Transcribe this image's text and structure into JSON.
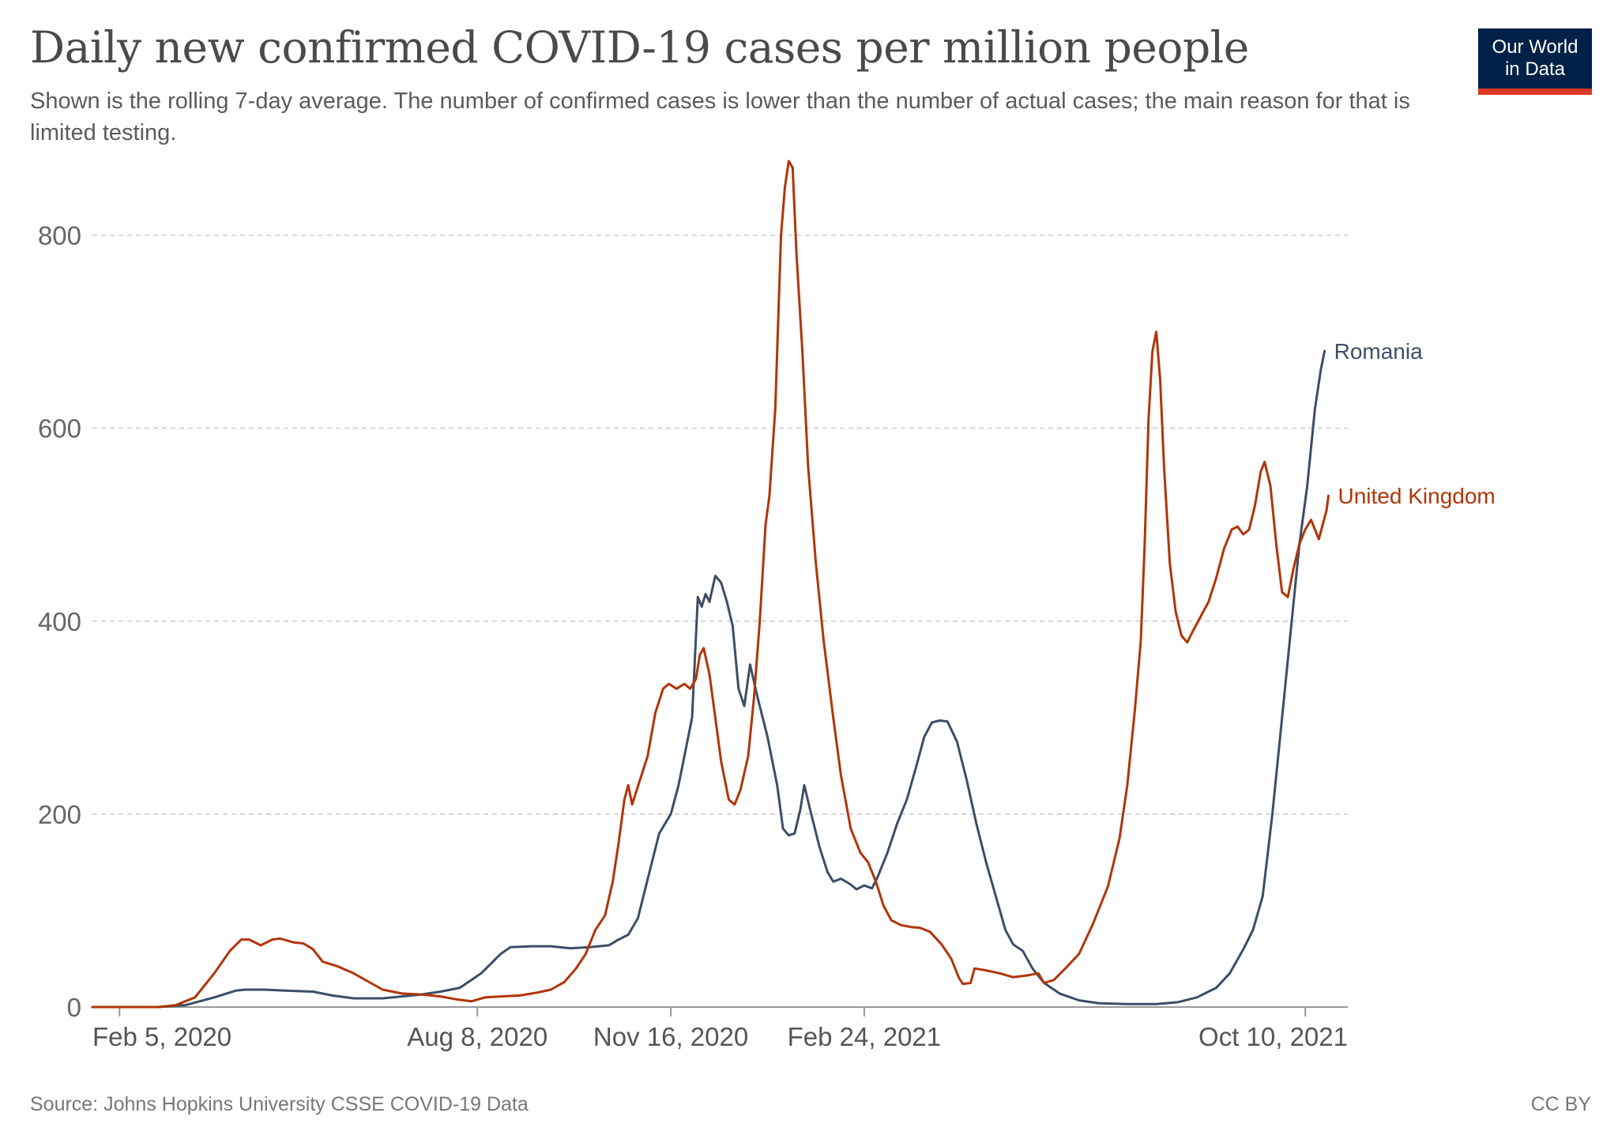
{
  "title": "Daily new confirmed COVID-19 cases per million people",
  "subtitle": "Shown is the rolling 7-day average. The number of confirmed cases is lower than the number of actual cases; the main reason for that is limited testing.",
  "logo": {
    "line1": "Our World",
    "line2": "in Data",
    "bg_color": "#002147",
    "accent_color": "#dc3a26"
  },
  "footer": {
    "source": "Source: Johns Hopkins University CSSE COVID-19 Data",
    "license": "CC BY"
  },
  "chart_data": {
    "type": "line",
    "title": "Daily new confirmed COVID-19 cases per million people",
    "xlabel": "",
    "ylabel": "",
    "x_range": [
      "2020-01-22",
      "2021-11-01"
    ],
    "ylim": [
      0,
      880
    ],
    "y_ticks": [
      0,
      200,
      400,
      600,
      800
    ],
    "x_ticks": [
      {
        "date": "2020-02-05",
        "label": "Feb 5, 2020"
      },
      {
        "date": "2020-08-08",
        "label": "Aug 8, 2020"
      },
      {
        "date": "2020-11-16",
        "label": "Nov 16, 2020"
      },
      {
        "date": "2021-02-24",
        "label": "Feb 24, 2021"
      },
      {
        "date": "2021-10-10",
        "label": "Oct 10, 2021"
      }
    ],
    "grid": "horizontal dashed",
    "legend": "inline labels at line ends",
    "series": [
      {
        "name": "Romania",
        "color": "#3c4e66",
        "points": [
          [
            "2020-01-22",
            0
          ],
          [
            "2020-02-25",
            0
          ],
          [
            "2020-03-10",
            2
          ],
          [
            "2020-03-25",
            10
          ],
          [
            "2020-04-05",
            17
          ],
          [
            "2020-04-10",
            18
          ],
          [
            "2020-04-20",
            18
          ],
          [
            "2020-05-01",
            17
          ],
          [
            "2020-05-15",
            16
          ],
          [
            "2020-05-25",
            12
          ],
          [
            "2020-06-05",
            9
          ],
          [
            "2020-06-20",
            9
          ],
          [
            "2020-06-30",
            11
          ],
          [
            "2020-07-10",
            13
          ],
          [
            "2020-07-20",
            16
          ],
          [
            "2020-07-30",
            20
          ],
          [
            "2020-08-10",
            35
          ],
          [
            "2020-08-20",
            55
          ],
          [
            "2020-08-25",
            62
          ],
          [
            "2020-09-05",
            63
          ],
          [
            "2020-09-15",
            63
          ],
          [
            "2020-09-25",
            61
          ],
          [
            "2020-10-05",
            62
          ],
          [
            "2020-10-15",
            64
          ],
          [
            "2020-10-20",
            70
          ],
          [
            "2020-10-25",
            75
          ],
          [
            "2020-10-30",
            92
          ],
          [
            "2020-11-05",
            140
          ],
          [
            "2020-11-10",
            180
          ],
          [
            "2020-11-16",
            200
          ],
          [
            "2020-11-20",
            230
          ],
          [
            "2020-11-24",
            270
          ],
          [
            "2020-11-27",
            300
          ],
          [
            "2020-11-30",
            425
          ],
          [
            "2020-12-02",
            415
          ],
          [
            "2020-12-04",
            428
          ],
          [
            "2020-12-06",
            420
          ],
          [
            "2020-12-09",
            447
          ],
          [
            "2020-12-12",
            440
          ],
          [
            "2020-12-15",
            420
          ],
          [
            "2020-12-18",
            395
          ],
          [
            "2020-12-21",
            330
          ],
          [
            "2020-12-24",
            312
          ],
          [
            "2020-12-27",
            355
          ],
          [
            "2020-12-31",
            320
          ],
          [
            "2021-01-05",
            280
          ],
          [
            "2021-01-10",
            230
          ],
          [
            "2021-01-13",
            185
          ],
          [
            "2021-01-16",
            178
          ],
          [
            "2021-01-19",
            180
          ],
          [
            "2021-01-22",
            205
          ],
          [
            "2021-01-24",
            230
          ],
          [
            "2021-01-27",
            205
          ],
          [
            "2021-02-01",
            165
          ],
          [
            "2021-02-05",
            140
          ],
          [
            "2021-02-08",
            130
          ],
          [
            "2021-02-12",
            133
          ],
          [
            "2021-02-17",
            127
          ],
          [
            "2021-02-20",
            122
          ],
          [
            "2021-02-24",
            126
          ],
          [
            "2021-02-28",
            123
          ],
          [
            "2021-03-03",
            135
          ],
          [
            "2021-03-08",
            160
          ],
          [
            "2021-03-13",
            190
          ],
          [
            "2021-03-18",
            215
          ],
          [
            "2021-03-23",
            250
          ],
          [
            "2021-03-27",
            280
          ],
          [
            "2021-03-31",
            295
          ],
          [
            "2021-04-04",
            297
          ],
          [
            "2021-04-08",
            296
          ],
          [
            "2021-04-13",
            275
          ],
          [
            "2021-04-18",
            235
          ],
          [
            "2021-04-23",
            190
          ],
          [
            "2021-04-28",
            150
          ],
          [
            "2021-05-03",
            115
          ],
          [
            "2021-05-08",
            80
          ],
          [
            "2021-05-12",
            65
          ],
          [
            "2021-05-17",
            58
          ],
          [
            "2021-05-22",
            40
          ],
          [
            "2021-05-28",
            25
          ],
          [
            "2021-06-05",
            14
          ],
          [
            "2021-06-15",
            7
          ],
          [
            "2021-06-25",
            4
          ],
          [
            "2021-07-10",
            3
          ],
          [
            "2021-07-25",
            3
          ],
          [
            "2021-08-05",
            5
          ],
          [
            "2021-08-15",
            10
          ],
          [
            "2021-08-25",
            20
          ],
          [
            "2021-09-01",
            35
          ],
          [
            "2021-09-08",
            60
          ],
          [
            "2021-09-13",
            80
          ],
          [
            "2021-09-18",
            115
          ],
          [
            "2021-09-23",
            200
          ],
          [
            "2021-09-28",
            300
          ],
          [
            "2021-10-03",
            400
          ],
          [
            "2021-10-07",
            480
          ],
          [
            "2021-10-11",
            540
          ],
          [
            "2021-10-15",
            620
          ],
          [
            "2021-10-18",
            660
          ],
          [
            "2021-10-20",
            680
          ]
        ]
      },
      {
        "name": "United Kingdom",
        "color": "#b13507",
        "points": [
          [
            "2020-01-22",
            0
          ],
          [
            "2020-02-25",
            0
          ],
          [
            "2020-03-05",
            2
          ],
          [
            "2020-03-15",
            10
          ],
          [
            "2020-03-25",
            35
          ],
          [
            "2020-04-02",
            58
          ],
          [
            "2020-04-08",
            70
          ],
          [
            "2020-04-12",
            70
          ],
          [
            "2020-04-18",
            64
          ],
          [
            "2020-04-24",
            70
          ],
          [
            "2020-04-28",
            71
          ],
          [
            "2020-05-05",
            67
          ],
          [
            "2020-05-10",
            66
          ],
          [
            "2020-05-15",
            60
          ],
          [
            "2020-05-20",
            47
          ],
          [
            "2020-05-28",
            42
          ],
          [
            "2020-06-05",
            35
          ],
          [
            "2020-06-12",
            27
          ],
          [
            "2020-06-20",
            18
          ],
          [
            "2020-06-30",
            14
          ],
          [
            "2020-07-10",
            13
          ],
          [
            "2020-07-20",
            11
          ],
          [
            "2020-07-28",
            8
          ],
          [
            "2020-08-05",
            6
          ],
          [
            "2020-08-12",
            10
          ],
          [
            "2020-08-20",
            11
          ],
          [
            "2020-08-30",
            12
          ],
          [
            "2020-09-08",
            15
          ],
          [
            "2020-09-15",
            18
          ],
          [
            "2020-09-22",
            26
          ],
          [
            "2020-09-28",
            40
          ],
          [
            "2020-10-03",
            55
          ],
          [
            "2020-10-08",
            80
          ],
          [
            "2020-10-13",
            95
          ],
          [
            "2020-10-17",
            130
          ],
          [
            "2020-10-20",
            170
          ],
          [
            "2020-10-23",
            215
          ],
          [
            "2020-10-25",
            230
          ],
          [
            "2020-10-27",
            210
          ],
          [
            "2020-10-31",
            235
          ],
          [
            "2020-11-04",
            260
          ],
          [
            "2020-11-08",
            305
          ],
          [
            "2020-11-12",
            330
          ],
          [
            "2020-11-15",
            335
          ],
          [
            "2020-11-19",
            330
          ],
          [
            "2020-11-23",
            335
          ],
          [
            "2020-11-26",
            330
          ],
          [
            "2020-11-29",
            340
          ],
          [
            "2020-12-01",
            365
          ],
          [
            "2020-12-03",
            372
          ],
          [
            "2020-12-06",
            345
          ],
          [
            "2020-12-09",
            300
          ],
          [
            "2020-12-12",
            255
          ],
          [
            "2020-12-16",
            215
          ],
          [
            "2020-12-19",
            210
          ],
          [
            "2020-12-22",
            225
          ],
          [
            "2020-12-26",
            260
          ],
          [
            "2020-12-29",
            320
          ],
          [
            "2021-01-01",
            400
          ],
          [
            "2021-01-04",
            500
          ],
          [
            "2021-01-06",
            530
          ],
          [
            "2021-01-09",
            620
          ],
          [
            "2021-01-12",
            800
          ],
          [
            "2021-01-14",
            850
          ],
          [
            "2021-01-16",
            877
          ],
          [
            "2021-01-18",
            870
          ],
          [
            "2021-01-20",
            780
          ],
          [
            "2021-01-23",
            680
          ],
          [
            "2021-01-26",
            560
          ],
          [
            "2021-01-30",
            460
          ],
          [
            "2021-02-03",
            380
          ],
          [
            "2021-02-08",
            300
          ],
          [
            "2021-02-12",
            240
          ],
          [
            "2021-02-17",
            185
          ],
          [
            "2021-02-22",
            160
          ],
          [
            "2021-02-26",
            150
          ],
          [
            "2021-03-02",
            130
          ],
          [
            "2021-03-06",
            105
          ],
          [
            "2021-03-10",
            90
          ],
          [
            "2021-03-15",
            85
          ],
          [
            "2021-03-20",
            83
          ],
          [
            "2021-03-25",
            82
          ],
          [
            "2021-03-30",
            78
          ],
          [
            "2021-04-05",
            65
          ],
          [
            "2021-04-10",
            50
          ],
          [
            "2021-04-14",
            30
          ],
          [
            "2021-04-16",
            24
          ],
          [
            "2021-04-20",
            25
          ],
          [
            "2021-04-22",
            40
          ],
          [
            "2021-04-28",
            38
          ],
          [
            "2021-05-05",
            35
          ],
          [
            "2021-05-12",
            31
          ],
          [
            "2021-05-20",
            33
          ],
          [
            "2021-05-25",
            35
          ],
          [
            "2021-05-28",
            25
          ],
          [
            "2021-06-02",
            28
          ],
          [
            "2021-06-08",
            40
          ],
          [
            "2021-06-15",
            55
          ],
          [
            "2021-06-22",
            85
          ],
          [
            "2021-06-30",
            125
          ],
          [
            "2021-07-06",
            175
          ],
          [
            "2021-07-10",
            230
          ],
          [
            "2021-07-14",
            310
          ],
          [
            "2021-07-17",
            380
          ],
          [
            "2021-07-19",
            480
          ],
          [
            "2021-07-21",
            610
          ],
          [
            "2021-07-23",
            680
          ],
          [
            "2021-07-25",
            700
          ],
          [
            "2021-07-27",
            650
          ],
          [
            "2021-07-29",
            560
          ],
          [
            "2021-08-01",
            460
          ],
          [
            "2021-08-04",
            410
          ],
          [
            "2021-08-07",
            385
          ],
          [
            "2021-08-10",
            378
          ],
          [
            "2021-08-13",
            390
          ],
          [
            "2021-08-17",
            405
          ],
          [
            "2021-08-21",
            420
          ],
          [
            "2021-08-25",
            445
          ],
          [
            "2021-08-29",
            475
          ],
          [
            "2021-09-02",
            495
          ],
          [
            "2021-09-05",
            498
          ],
          [
            "2021-09-08",
            490
          ],
          [
            "2021-09-11",
            495
          ],
          [
            "2021-09-14",
            520
          ],
          [
            "2021-09-17",
            555
          ],
          [
            "2021-09-19",
            565
          ],
          [
            "2021-09-22",
            540
          ],
          [
            "2021-09-25",
            480
          ],
          [
            "2021-09-28",
            430
          ],
          [
            "2021-10-01",
            425
          ],
          [
            "2021-10-04",
            455
          ],
          [
            "2021-10-07",
            480
          ],
          [
            "2021-10-10",
            495
          ],
          [
            "2021-10-13",
            505
          ],
          [
            "2021-10-15",
            495
          ],
          [
            "2021-10-17",
            485
          ],
          [
            "2021-10-19",
            500
          ],
          [
            "2021-10-21",
            515
          ],
          [
            "2021-10-22",
            530
          ]
        ]
      }
    ]
  }
}
